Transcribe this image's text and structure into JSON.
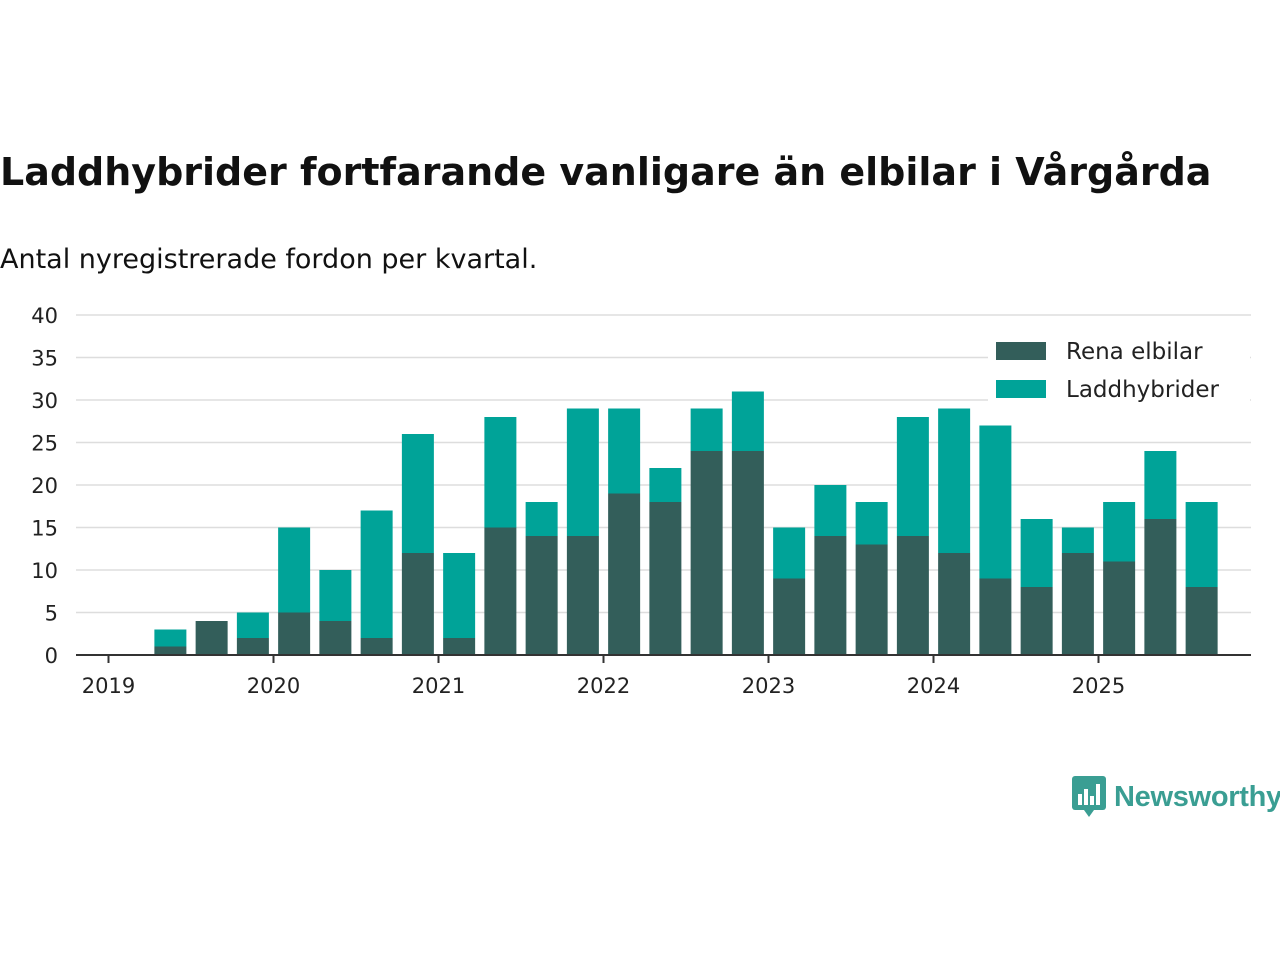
{
  "title": "Laddhybrider fortfarande vanligare än elbilar i Vårgårda",
  "subtitle": "Antal nyregistrerade fordon per kvartal.",
  "brand": "Newsworthy",
  "colors": {
    "rena_elbilar": "#335e5a",
    "laddhybrider": "#00a398",
    "grid": "#dddddd",
    "axis": "#333333",
    "brand": "#3a9e93"
  },
  "chart_data": {
    "type": "bar",
    "stacked": true,
    "title": "Laddhybrider fortfarande vanligare än elbilar i Vårgårda",
    "subtitle": "Antal nyregistrerade fordon per kvartal.",
    "xlabel": "",
    "ylabel": "",
    "ylim": [
      0,
      40
    ],
    "yticks": [
      0,
      5,
      10,
      15,
      20,
      25,
      30,
      35,
      40
    ],
    "xtick_labels": [
      "2019",
      "2020",
      "2021",
      "2022",
      "2023",
      "2024",
      "2025"
    ],
    "legend_position": "top-right",
    "categories": [
      "2019 Q1",
      "2019 Q2",
      "2019 Q3",
      "2019 Q4",
      "2020 Q1",
      "2020 Q2",
      "2020 Q3",
      "2020 Q4",
      "2021 Q1",
      "2021 Q2",
      "2021 Q3",
      "2021 Q4",
      "2022 Q1",
      "2022 Q2",
      "2022 Q3",
      "2022 Q4",
      "2023 Q1",
      "2023 Q2",
      "2023 Q3",
      "2023 Q4",
      "2024 Q1",
      "2024 Q2",
      "2024 Q3",
      "2024 Q4",
      "2025 Q1",
      "2025 Q2",
      "2025 Q3"
    ],
    "series": [
      {
        "name": "Rena elbilar",
        "values": [
          0,
          1,
          4,
          2,
          5,
          4,
          2,
          12,
          2,
          15,
          14,
          14,
          19,
          18,
          24,
          24,
          9,
          14,
          13,
          14,
          12,
          9,
          8,
          12,
          11,
          16,
          8
        ]
      },
      {
        "name": "Laddhybrider",
        "values": [
          0,
          2,
          0,
          3,
          10,
          6,
          15,
          14,
          10,
          13,
          4,
          15,
          10,
          4,
          5,
          7,
          6,
          6,
          5,
          14,
          17,
          18,
          8,
          3,
          7,
          8,
          10
        ]
      }
    ]
  }
}
